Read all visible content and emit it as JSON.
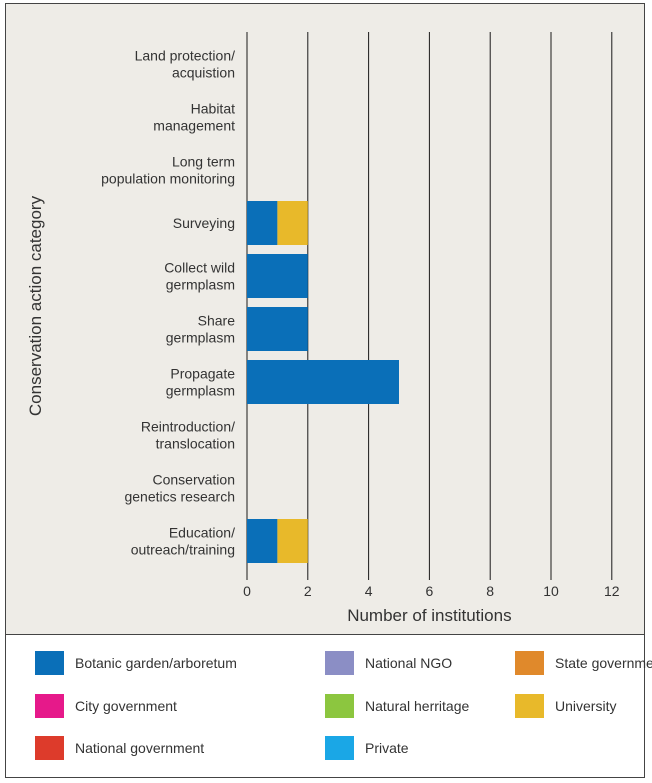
{
  "chart_data": {
    "type": "bar",
    "orientation": "horizontal",
    "stacked": true,
    "xlabel": "Number of institutions",
    "ylabel": "Conservation action category",
    "xlim": [
      0,
      13
    ],
    "xticks": [
      "0",
      "2",
      "4",
      "6",
      "8",
      "10",
      "12"
    ],
    "grid": "vertical",
    "legend_position": "bottom",
    "categories": [
      [
        "Land protection/",
        "acquistion"
      ],
      [
        "Habitat",
        "management"
      ],
      [
        "Long term",
        "population monitoring"
      ],
      [
        "Surveying"
      ],
      [
        "Collect wild",
        "germplasm"
      ],
      [
        "Share",
        "germplasm"
      ],
      [
        "Propagate",
        "germplasm"
      ],
      [
        "Reintroduction/",
        "translocation"
      ],
      [
        "Conservation",
        "genetics research"
      ],
      [
        "Education/",
        "outreach/training"
      ]
    ],
    "series": [
      {
        "name": "Botanic garden/arboretum",
        "color": "#0a6fb8",
        "values": [
          0,
          0,
          0,
          1,
          2,
          2,
          5,
          0,
          0,
          1
        ]
      },
      {
        "name": "National NGO",
        "color": "#8b8ec5",
        "values": [
          0,
          0,
          0,
          0,
          0,
          0,
          0,
          0,
          0,
          0
        ]
      },
      {
        "name": "State government",
        "color": "#e0892b",
        "values": [
          0,
          0,
          0,
          0,
          0,
          0,
          0,
          0,
          0,
          0
        ]
      },
      {
        "name": "City government",
        "color": "#e6198a",
        "values": [
          0,
          0,
          0,
          0,
          0,
          0,
          0,
          0,
          0,
          0
        ]
      },
      {
        "name": "Natural herritage",
        "color": "#8cc63f",
        "values": [
          0,
          0,
          0,
          0,
          0,
          0,
          0,
          0,
          0,
          0
        ]
      },
      {
        "name": "University",
        "color": "#e8b92a",
        "values": [
          0,
          0,
          0,
          1,
          0,
          0,
          0,
          0,
          0,
          1
        ]
      },
      {
        "name": "National government",
        "color": "#dd3b2b",
        "values": [
          0,
          0,
          0,
          0,
          0,
          0,
          0,
          0,
          0,
          0
        ]
      },
      {
        "name": "Private",
        "color": "#1aa7e6",
        "values": [
          0,
          0,
          0,
          0,
          0,
          0,
          0,
          0,
          0,
          0
        ]
      }
    ]
  }
}
